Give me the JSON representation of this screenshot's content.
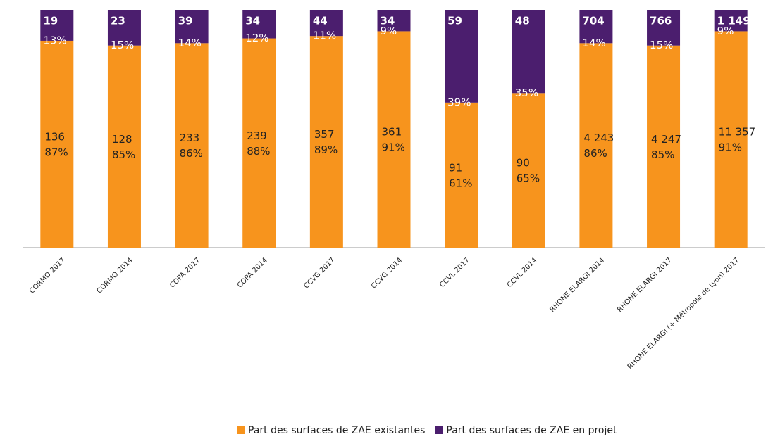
{
  "chart_data": {
    "type": "stacked_bar_100",
    "categories": [
      "CORMO 2017",
      "CORMO 2014",
      "COPA 2017",
      "COPA 2014",
      "CCVG 2017",
      "CCVG 2014",
      "CCVL 2017",
      "CCVL 2014",
      "RHONE ELARGI 2014",
      "RHONE ELARGI 2017",
      "RHONE ELARGI (+ Métropole de Lyon) 2017"
    ],
    "ylim": [
      0,
      100
    ],
    "series": [
      {
        "name": "Part des surfaces de ZAE existantes",
        "color": "#f7941d",
        "values": [
          87,
          85,
          86,
          88,
          89,
          91,
          61,
          65,
          86,
          85,
          91
        ],
        "value_labels": [
          "87%",
          "85%",
          "86%",
          "88%",
          "89%",
          "91%",
          "61%",
          "65%",
          "86%",
          "85%",
          "91%"
        ],
        "counts": [
          136,
          128,
          233,
          239,
          357,
          361,
          91,
          90,
          {
            "value": 4243,
            "label": "4 243"
          },
          {
            "value": 4247,
            "label": "4 247"
          },
          {
            "value": 11357,
            "label": "11 357"
          }
        ]
      },
      {
        "name": "Part des surfaces de ZAE en projet",
        "color": "#4b1e6e",
        "values": [
          13,
          15,
          14,
          12,
          11,
          9,
          39,
          35,
          14,
          15,
          9
        ],
        "value_labels": [
          "13%",
          "15%",
          "14%",
          "12%",
          "11%",
          "9%",
          "39%",
          "35%",
          "14%",
          "15%",
          "9%"
        ],
        "counts": [
          19,
          23,
          39,
          34,
          44,
          34,
          59,
          48,
          704,
          766,
          {
            "value": 1149,
            "label": "1 149"
          }
        ]
      }
    ]
  }
}
